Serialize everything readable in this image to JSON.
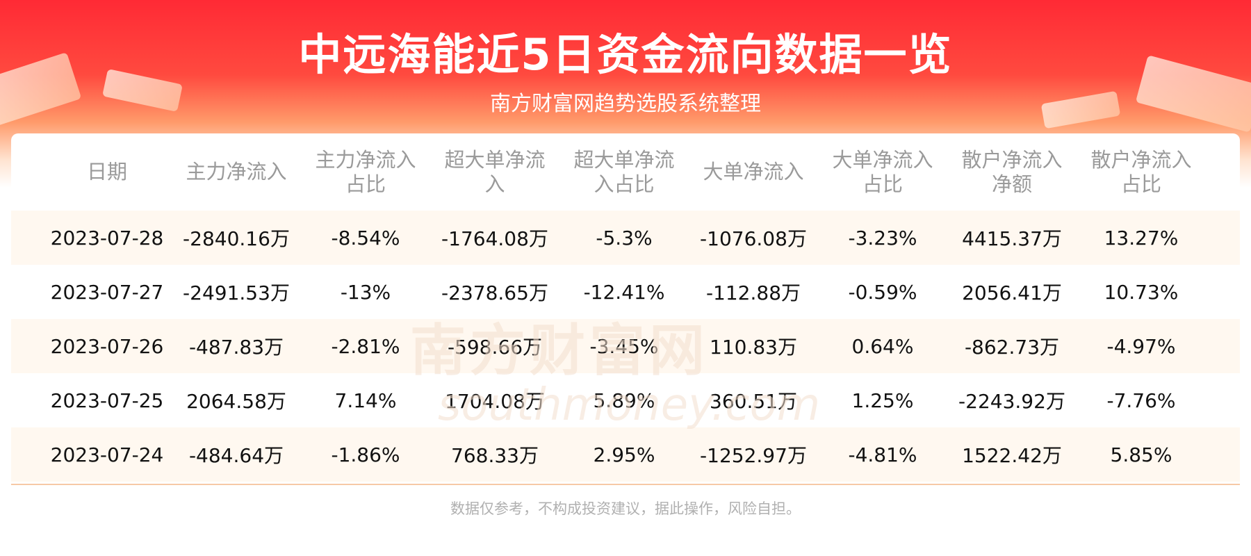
{
  "header": {
    "title": "中远海能近5日资金流向数据一览",
    "subtitle": "南方财富网趋势选股系统整理"
  },
  "table": {
    "columns": [
      "日期",
      "主力净流入",
      "主力净流入占比",
      "超大单净流入",
      "超大单净流入占比",
      "大单净流入",
      "大单净流入占比",
      "散户净流入净额",
      "散户净流入占比"
    ],
    "rows": [
      [
        "2023-07-28",
        "-2840.16万",
        "-8.54%",
        "-1764.08万",
        "-5.3%",
        "-1076.08万",
        "-3.23%",
        "4415.37万",
        "13.27%"
      ],
      [
        "2023-07-27",
        "-2491.53万",
        "-13%",
        "-2378.65万",
        "-12.41%",
        "-112.88万",
        "-0.59%",
        "2056.41万",
        "10.73%"
      ],
      [
        "2023-07-26",
        "-487.83万",
        "-2.81%",
        "-598.66万",
        "-3.45%",
        "110.83万",
        "0.64%",
        "-862.73万",
        "-4.97%"
      ],
      [
        "2023-07-25",
        "2064.58万",
        "7.14%",
        "1704.08万",
        "5.89%",
        "360.51万",
        "1.25%",
        "-2243.92万",
        "-7.76%"
      ],
      [
        "2023-07-24",
        "-484.64万",
        "-1.86%",
        "768.33万",
        "2.95%",
        "-1252.97万",
        "-4.81%",
        "1522.42万",
        "5.85%"
      ]
    ]
  },
  "watermark": {
    "cn": "南方财富网",
    "en": "southmoney.com"
  },
  "footer": "数据仅参考，不构成投资建议，据此操作，风险自担。"
}
